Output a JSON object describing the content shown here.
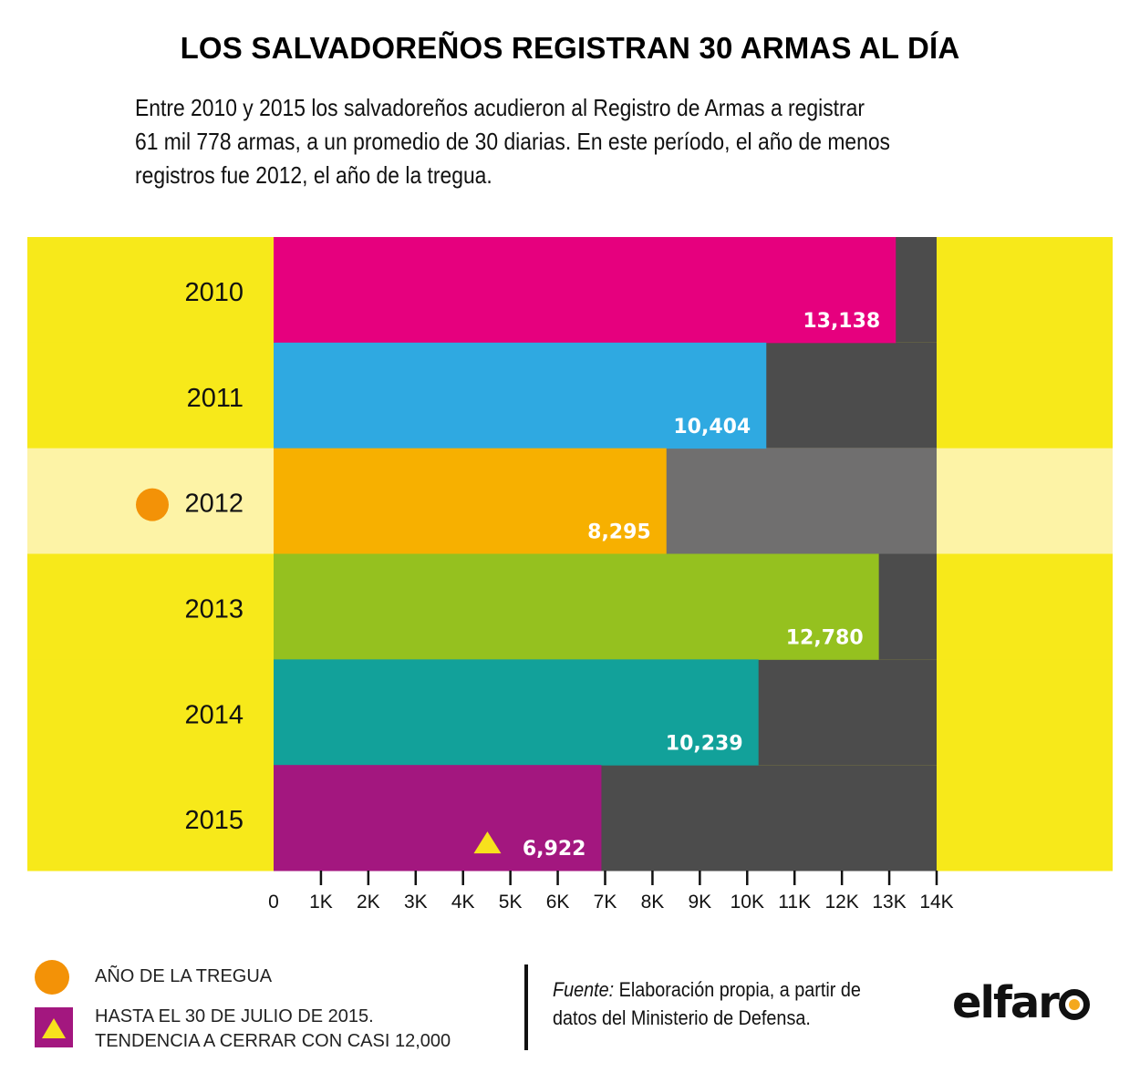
{
  "header": {
    "title": "LOS SALVADOREÑOS REGISTRAN 30 ARMAS AL DÍA",
    "subtitle_lines": [
      "Entre 2010 y 2015 los salvadoreños acudieron al Registro de Armas a registrar",
      "61 mil 778 armas, a un promedio de 30 diarias. En este período, el año de menos",
      "registros fue 2012, el año de la tregua."
    ]
  },
  "chart_data": {
    "type": "bar",
    "orientation": "horizontal",
    "title": "LOS SALVADOREÑOS REGISTRAN 30 ARMAS AL DÍA",
    "xlabel": "",
    "ylabel": "",
    "categories": [
      "2010",
      "2011",
      "2012",
      "2013",
      "2014",
      "2015"
    ],
    "values": [
      13138,
      10404,
      8295,
      12780,
      10239,
      6922
    ],
    "value_labels": [
      "13,138",
      "10,404",
      "8,295",
      "12,780",
      "10,239",
      "6,922"
    ],
    "bar_colors": [
      "#e6007e",
      "#2fa9e1",
      "#f7b000",
      "#95c11f",
      "#12a19a",
      "#a3177f"
    ],
    "xlim": [
      0,
      14000
    ],
    "x_ticks": [
      0,
      1000,
      2000,
      3000,
      4000,
      5000,
      6000,
      7000,
      8000,
      9000,
      10000,
      11000,
      12000,
      13000,
      14000
    ],
    "x_tick_labels": [
      "0",
      "1K",
      "2K",
      "3K",
      "4K",
      "5K",
      "6K",
      "7K",
      "8K",
      "9K",
      "10K",
      "11K",
      "12K",
      "13K",
      "14K"
    ],
    "grid": false,
    "highlighted_category": "2012",
    "annotations": [
      {
        "category": "2012",
        "marker": "circle",
        "meaning": "AÑO DE LA TREGUA"
      },
      {
        "category": "2015",
        "marker": "triangle",
        "meaning": "HASTA EL 30 DE JULIO DE 2015. TENDENCIA A CERRAR CON CASI 12,000"
      }
    ],
    "legend_position": "bottom-left"
  },
  "colors": {
    "band_yellow": "#f7e91a",
    "band_highlight": "#fdf3a6",
    "remainder_dark": "#4c4c4c",
    "remainder_highlight": "#706f6f",
    "orange_dot": "#f39207",
    "triangle_yellow": "#f7e11d",
    "logo_accent": "#f4a81d"
  },
  "legend": {
    "items": [
      {
        "icon": "orange-circle-icon",
        "lines": [
          "AÑO DE LA TREGUA"
        ]
      },
      {
        "icon": "yellow-triangle-on-purple-icon",
        "lines": [
          "HASTA EL 30 DE JULIO DE 2015.",
          "TENDENCIA A CERRAR CON CASI 12,000"
        ]
      }
    ]
  },
  "source": {
    "label": "Fuente:",
    "line1": " Elaboración propia, a partir de",
    "line2": "datos del Ministerio de Defensa."
  },
  "logo": {
    "text": "elfar"
  }
}
